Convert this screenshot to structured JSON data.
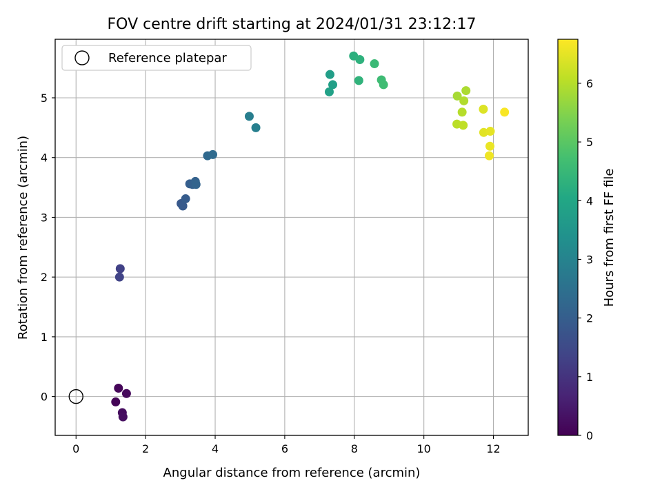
{
  "chart_data": {
    "type": "scatter",
    "title": "FOV centre drift starting at 2024/01/31 23:12:17",
    "xlabel": "Angular distance from reference (arcmin)",
    "ylabel": "Rotation from reference (arcmin)",
    "xlim": [
      -0.6,
      13.0
    ],
    "ylim": [
      -0.65,
      5.98
    ],
    "xticks": [
      0,
      2,
      4,
      6,
      8,
      10,
      12
    ],
    "yticks": [
      0,
      1,
      2,
      3,
      4,
      5
    ],
    "grid": true,
    "legend": {
      "position": "top-left",
      "entries": [
        "Reference platepar"
      ]
    },
    "reference_point": {
      "x": 0,
      "y": 0
    },
    "colorbar": {
      "label": "Hours from first FF file",
      "range": [
        0,
        6.75
      ],
      "ticks": [
        0,
        1,
        2,
        3,
        4,
        5,
        6
      ],
      "colormap": "viridis"
    },
    "points": [
      {
        "x": 1.14,
        "y": -0.09,
        "hours": 0.05
      },
      {
        "x": 1.22,
        "y": 0.14,
        "hours": 0.1
      },
      {
        "x": 1.45,
        "y": 0.05,
        "hours": 0.15
      },
      {
        "x": 1.33,
        "y": -0.27,
        "hours": 0.2
      },
      {
        "x": 1.35,
        "y": -0.34,
        "hours": 0.25
      },
      {
        "x": 1.27,
        "y": 2.14,
        "hours": 1.3
      },
      {
        "x": 1.25,
        "y": 2.0,
        "hours": 1.35
      },
      {
        "x": 3.02,
        "y": 3.23,
        "hours": 1.85
      },
      {
        "x": 3.07,
        "y": 3.19,
        "hours": 1.9
      },
      {
        "x": 3.15,
        "y": 3.31,
        "hours": 1.95
      },
      {
        "x": 3.27,
        "y": 3.56,
        "hours": 2.0
      },
      {
        "x": 3.35,
        "y": 3.55,
        "hours": 2.05
      },
      {
        "x": 3.43,
        "y": 3.6,
        "hours": 2.1
      },
      {
        "x": 3.45,
        "y": 3.55,
        "hours": 2.15
      },
      {
        "x": 3.78,
        "y": 4.03,
        "hours": 2.3
      },
      {
        "x": 3.93,
        "y": 4.05,
        "hours": 2.35
      },
      {
        "x": 4.98,
        "y": 4.69,
        "hours": 2.85
      },
      {
        "x": 5.17,
        "y": 4.5,
        "hours": 2.9
      },
      {
        "x": 7.3,
        "y": 5.39,
        "hours": 3.75
      },
      {
        "x": 7.38,
        "y": 5.22,
        "hours": 3.8
      },
      {
        "x": 7.28,
        "y": 5.1,
        "hours": 3.85
      },
      {
        "x": 7.98,
        "y": 5.7,
        "hours": 4.25
      },
      {
        "x": 8.16,
        "y": 5.64,
        "hours": 4.3
      },
      {
        "x": 8.13,
        "y": 5.29,
        "hours": 4.35
      },
      {
        "x": 8.58,
        "y": 5.57,
        "hours": 4.55
      },
      {
        "x": 8.78,
        "y": 5.3,
        "hours": 4.6
      },
      {
        "x": 8.84,
        "y": 5.22,
        "hours": 4.65
      },
      {
        "x": 10.96,
        "y": 5.03,
        "hours": 5.85
      },
      {
        "x": 11.21,
        "y": 5.12,
        "hours": 5.9
      },
      {
        "x": 11.15,
        "y": 4.95,
        "hours": 5.95
      },
      {
        "x": 11.1,
        "y": 4.76,
        "hours": 6.0
      },
      {
        "x": 10.95,
        "y": 4.56,
        "hours": 6.05
      },
      {
        "x": 11.13,
        "y": 4.54,
        "hours": 6.1
      },
      {
        "x": 11.71,
        "y": 4.81,
        "hours": 6.4
      },
      {
        "x": 11.72,
        "y": 4.42,
        "hours": 6.45
      },
      {
        "x": 11.91,
        "y": 4.44,
        "hours": 6.5
      },
      {
        "x": 11.9,
        "y": 4.19,
        "hours": 6.55
      },
      {
        "x": 11.88,
        "y": 4.03,
        "hours": 6.6
      },
      {
        "x": 12.32,
        "y": 4.76,
        "hours": 6.7
      }
    ]
  }
}
